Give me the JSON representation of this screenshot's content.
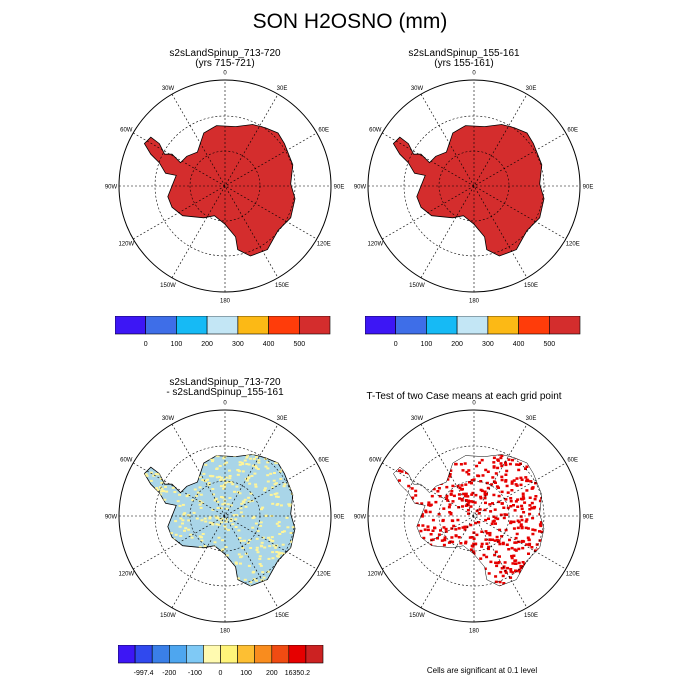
{
  "figure_title": "SON H2OSNO (mm)",
  "panels": [
    {
      "title": "s2sLandSpinup_713-720",
      "subtitle": "(yrs 715-721)",
      "fill": "#d42d2d"
    },
    {
      "title": "s2sLandSpinup_155-161",
      "subtitle": "(yrs 155-161)",
      "fill": "#d42d2d"
    },
    {
      "title": "s2sLandSpinup_713-720",
      "subtitle": "- s2sLandSpinup_155-161",
      "fill": "#a9d5e8"
    },
    {
      "title": "T-Test of two Case means at each grid point",
      "subtitle": "",
      "fill": "#e60000"
    }
  ],
  "map_labels": {
    "top": "0",
    "bottom": "180",
    "left": "90W",
    "right": "90E",
    "ul1": "30W",
    "ul2": "60W",
    "ur1": "30E",
    "ur2": "60E",
    "ll1": "120W",
    "ll2": "150W",
    "lr1": "120E",
    "lr2": "150E"
  },
  "significance_note": "Cells are significant at 0.1 level",
  "chart_data": [
    {
      "type": "colorbar",
      "colors": [
        "#3d16f5",
        "#3e6ee8",
        "#16baf5",
        "#c3e6f5",
        "#fcb915",
        "#ff3c0a",
        "#d42d2d"
      ],
      "labels": [
        "0",
        "100",
        "200",
        "300",
        "400",
        "500"
      ]
    },
    {
      "type": "colorbar",
      "colors": [
        "#3d16f5",
        "#3e6ee8",
        "#16baf5",
        "#c3e6f5",
        "#fcb915",
        "#ff3c0a",
        "#d42d2d"
      ],
      "labels": [
        "0",
        "100",
        "200",
        "300",
        "400",
        "500"
      ]
    },
    {
      "type": "colorbar",
      "colors": [
        "#3d16f5",
        "#3049ee",
        "#3a7fe8",
        "#4ea6ef",
        "#7fc9f5",
        "#fffab0",
        "#fff47a",
        "#fdbf33",
        "#f98c1e",
        "#f04b12",
        "#e60000",
        "#cc2222"
      ],
      "labels": [
        "-997.4",
        "-200",
        "-100",
        "0",
        "100",
        "200",
        "16350.2"
      ]
    }
  ]
}
